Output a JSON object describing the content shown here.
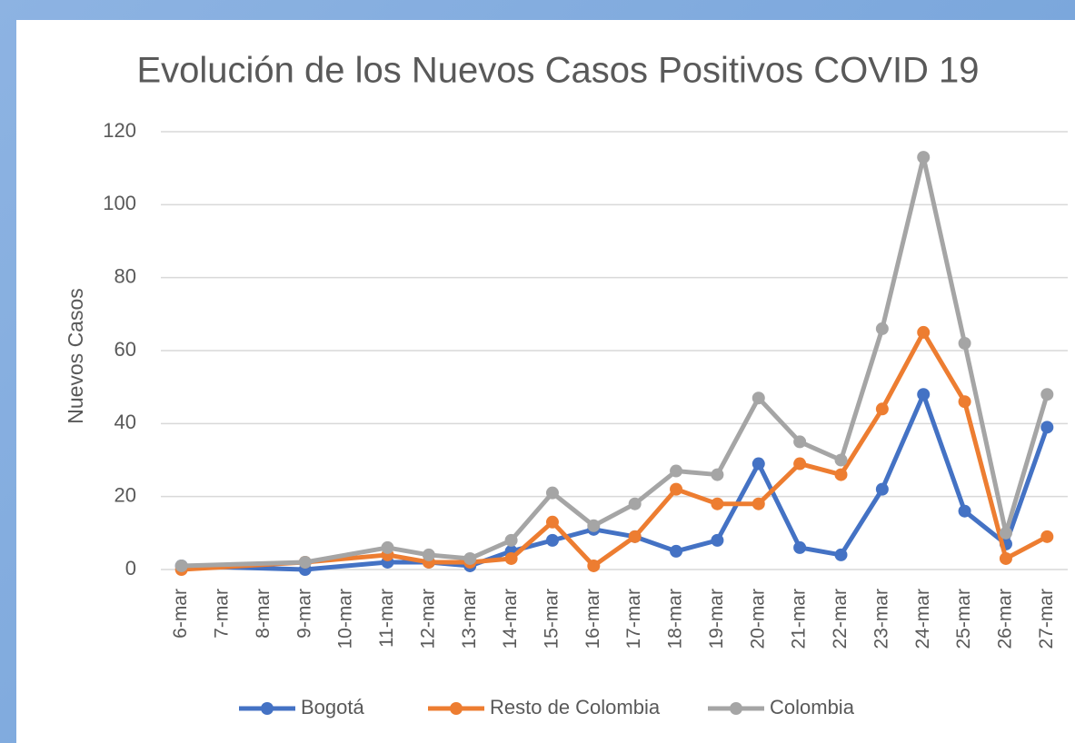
{
  "chart_data": {
    "type": "line",
    "title": "Evolución de los Nuevos Casos Positivos COVID 19",
    "ylabel": "Nuevos Casos",
    "categories": [
      "6-mar",
      "7-mar",
      "8-mar",
      "9-mar",
      "10-mar",
      "11-mar",
      "12-mar",
      "13-mar",
      "14-mar",
      "15-mar",
      "16-mar",
      "17-mar",
      "18-mar",
      "19-mar",
      "20-mar",
      "21-mar",
      "22-mar",
      "23-mar",
      "24-mar",
      "25-mar",
      "26-mar",
      "27-mar"
    ],
    "series": [
      {
        "name": "Bogotá",
        "color": "#4472c4",
        "values": [
          1,
          null,
          null,
          0,
          null,
          2,
          2,
          1,
          5,
          8,
          11,
          9,
          5,
          8,
          29,
          6,
          4,
          22,
          48,
          16,
          7,
          39
        ]
      },
      {
        "name": "Resto de Colombia",
        "color": "#ed7d31",
        "values": [
          0,
          null,
          null,
          2,
          null,
          4,
          2,
          2,
          3,
          13,
          1,
          9,
          22,
          18,
          18,
          29,
          26,
          44,
          65,
          46,
          3,
          9
        ]
      },
      {
        "name": "Colombia",
        "color": "#a5a5a5",
        "values": [
          1,
          null,
          null,
          2,
          null,
          6,
          4,
          3,
          8,
          21,
          12,
          18,
          27,
          26,
          47,
          35,
          30,
          66,
          113,
          62,
          10,
          48
        ]
      }
    ],
    "connect_gaps": true,
    "ylim": [
      0,
      120
    ],
    "yticks": [
      0,
      20,
      40,
      60,
      80,
      100,
      120
    ],
    "grid": true,
    "legend": "bottom"
  }
}
